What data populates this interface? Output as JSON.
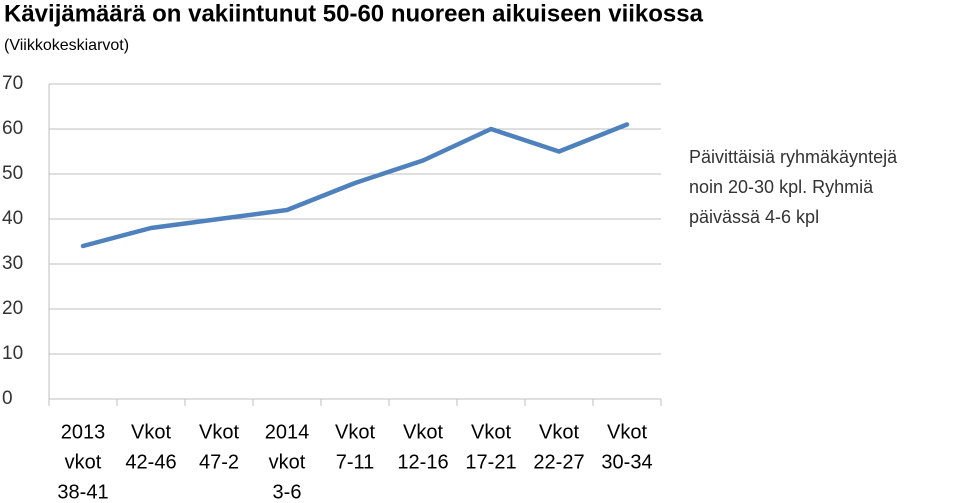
{
  "chart_data": {
    "type": "line",
    "title": "Kävijämäärä on vakiintunut 50-60 nuoreen aikuiseen viikossa",
    "subtitle": "(Viikkokeskiarvot)",
    "categories": [
      [
        "2013",
        "vkot",
        "38-41"
      ],
      [
        "Vkot",
        "42-46"
      ],
      [
        "Vkot",
        "47-2"
      ],
      [
        "2014",
        "vkot",
        "3-6"
      ],
      [
        "Vkot",
        "7-11"
      ],
      [
        "Vkot",
        "12-16"
      ],
      [
        "Vkot",
        "17-21"
      ],
      [
        "Vkot",
        "22-27"
      ],
      [
        "Vkot",
        "30-34"
      ]
    ],
    "values": [
      34,
      38,
      40,
      42,
      48,
      53,
      60,
      55,
      61
    ],
    "color": "#4f81bd",
    "ylim": [
      0,
      70
    ],
    "yticks": [
      0,
      10,
      20,
      30,
      40,
      50,
      60,
      70
    ],
    "grid": true,
    "annotation": [
      "Päivittäisiä ryhmäkäyntejä",
      "noin 20-30 kpl. Ryhmiä",
      "päivässä 4-6 kpl"
    ]
  }
}
